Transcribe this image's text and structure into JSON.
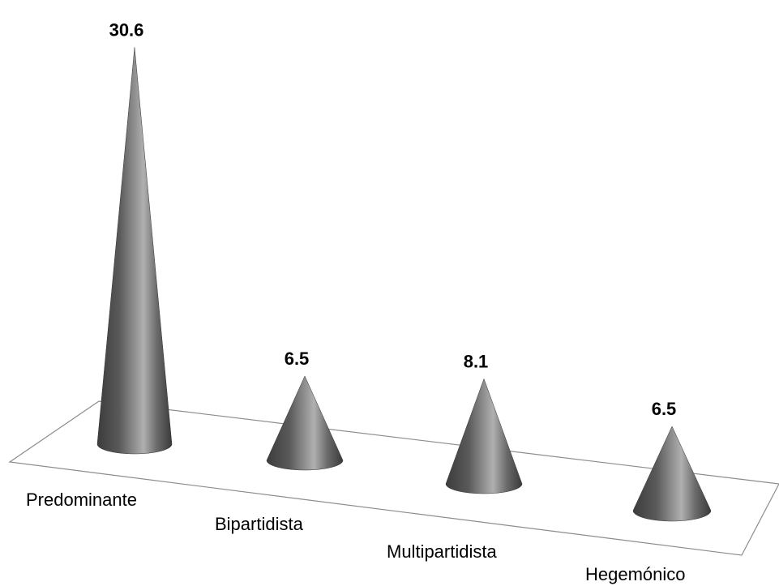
{
  "chart_data": {
    "type": "bar",
    "style": "3d-cone",
    "categories": [
      "Predominante",
      "Bipartidista",
      "Multipartidista",
      "Hegemónico"
    ],
    "values": [
      30.6,
      6.5,
      8.1,
      6.5
    ],
    "value_labels": [
      "30.6",
      "6.5",
      "8.1",
      "6.5"
    ],
    "title": "",
    "xlabel": "",
    "ylabel": "",
    "grid": false,
    "legend": "none",
    "colors": {
      "cone_dark": "#3a3a3a",
      "cone_light": "#a8a8a8",
      "floor_line": "#8a8a8a"
    }
  }
}
